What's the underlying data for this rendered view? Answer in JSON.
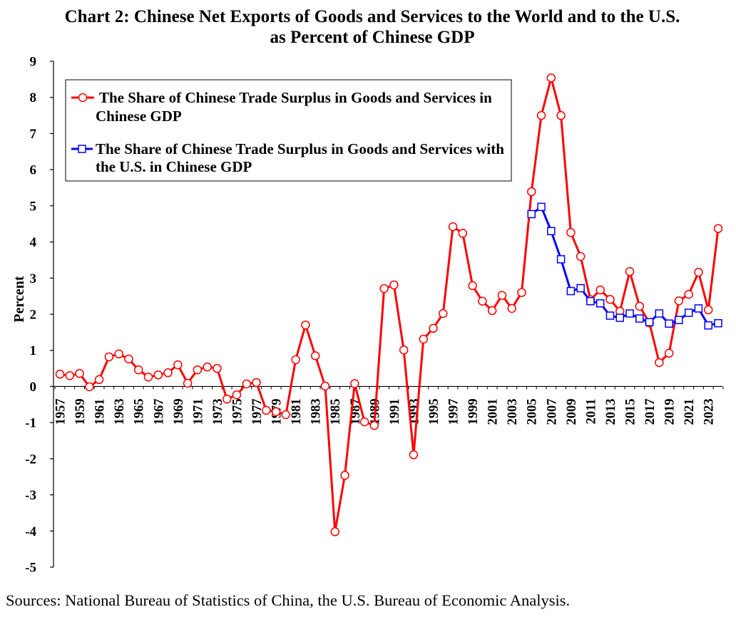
{
  "chart_data": {
    "type": "line",
    "title": [
      "Chart 2: Chinese Net Exports of Goods and Services to the World and to the U.S.",
      "as Percent of Chinese GDP"
    ],
    "xlabel": "",
    "ylabel": "Percent",
    "xlim": [
      1957,
      2024
    ],
    "ylim": [
      -5,
      9
    ],
    "yticks": [
      9,
      8,
      7,
      6,
      5,
      4,
      3,
      2,
      1,
      0,
      -1,
      -2,
      -3,
      -4,
      -5
    ],
    "xtick_labels": [
      "1957",
      "1959",
      "1961",
      "1963",
      "1965",
      "1967",
      "1969",
      "1971",
      "1973",
      "1975",
      "1977",
      "1979",
      "1981",
      "1983",
      "1985",
      "1987",
      "1989",
      "1991",
      "1993",
      "1995",
      "1997",
      "1999",
      "2001",
      "2003",
      "2005",
      "2007",
      "2009",
      "2011",
      "2013",
      "2015",
      "2017",
      "2019",
      "2021",
      "2023"
    ],
    "grid": false,
    "legend": "top-left",
    "series": [
      {
        "name_lines": [
          "The Share of Chinese Trade Surplus in Goods and Services in",
          "Chinese GDP"
        ],
        "color": "#ff0000",
        "x": [
          1957,
          1958,
          1959,
          1960,
          1961,
          1962,
          1963,
          1964,
          1965,
          1966,
          1967,
          1968,
          1969,
          1970,
          1971,
          1972,
          1973,
          1974,
          1975,
          1976,
          1977,
          1978,
          1979,
          1980,
          1981,
          1982,
          1983,
          1984,
          1985,
          1986,
          1987,
          1988,
          1989,
          1990,
          1991,
          1992,
          1993,
          1994,
          1995,
          1996,
          1997,
          1998,
          1999,
          2000,
          2001,
          2002,
          2003,
          2004,
          2005,
          2006,
          2007,
          2008,
          2009,
          2010,
          2011,
          2012,
          2013,
          2014,
          2015,
          2016,
          2017,
          2018,
          2019,
          2020,
          2021,
          2022,
          2023,
          2024
        ],
        "values": [
          0.34,
          0.3,
          0.36,
          -0.01,
          0.19,
          0.82,
          0.9,
          0.76,
          0.46,
          0.26,
          0.32,
          0.38,
          0.6,
          0.09,
          0.46,
          0.54,
          0.5,
          -0.35,
          -0.23,
          0.07,
          0.11,
          -0.66,
          -0.7,
          -0.78,
          0.74,
          1.7,
          0.85,
          0.01,
          -4.02,
          -2.46,
          0.08,
          -0.98,
          -1.08,
          2.71,
          2.81,
          1.01,
          -1.89,
          1.31,
          1.61,
          2.02,
          4.42,
          4.24,
          2.79,
          2.36,
          2.1,
          2.52,
          2.16,
          2.6,
          5.39,
          7.5,
          8.54,
          7.5,
          4.26,
          3.6,
          2.4,
          2.67,
          2.41,
          2.08,
          3.18,
          2.22,
          1.76,
          0.66,
          0.92,
          2.37,
          2.55,
          3.16,
          2.12,
          4.37
        ]
      },
      {
        "name_lines": [
          "The Share of Chinese Trade Surplus in Goods and Services with",
          "the U.S. in Chinese GDP"
        ],
        "color": "#0000ff",
        "x": [
          2005,
          2006,
          2007,
          2008,
          2009,
          2010,
          2011,
          2012,
          2013,
          2014,
          2015,
          2016,
          2017,
          2018,
          2019,
          2020,
          2021,
          2022,
          2023,
          2024
        ],
        "values": [
          4.77,
          4.97,
          4.3,
          3.52,
          2.64,
          2.72,
          2.36,
          2.3,
          1.96,
          1.9,
          2.02,
          1.88,
          1.78,
          2.02,
          1.74,
          1.84,
          2.04,
          2.16,
          1.69,
          1.75
        ]
      }
    ]
  },
  "source": "Sources: National Bureau of Statistics of China, the U.S. Bureau of Economic Analysis."
}
